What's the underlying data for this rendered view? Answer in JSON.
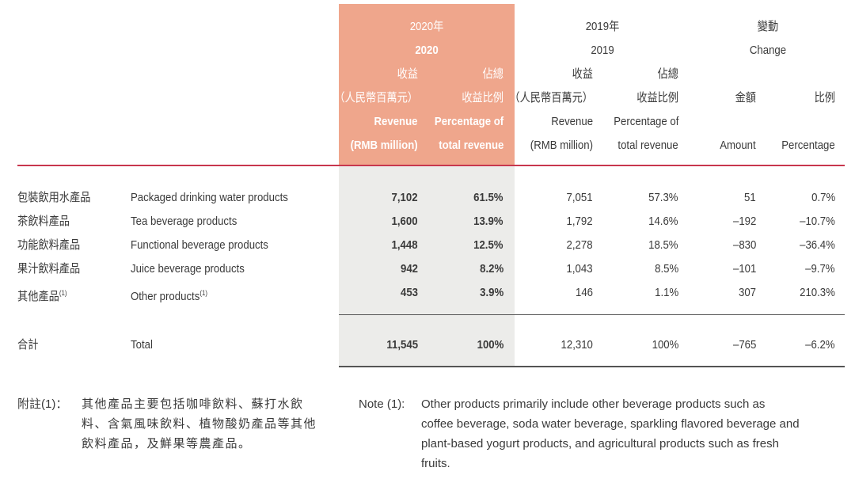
{
  "header": {
    "y2020_zh": "2020年",
    "y2020_en": "2020",
    "y2019_zh": "2019年",
    "y2019_en": "2019",
    "change_zh": "變動",
    "change_en": "Change",
    "rev_zh_1": "收益",
    "rev_zh_2": "（人民幣百萬元）",
    "pct_zh_1": "佔總",
    "pct_zh_2": "收益比例",
    "rev_en_1": "Revenue",
    "rev_en_2": "(RMB million)",
    "pct_en_1": "Percentage of",
    "pct_en_2": "total revenue",
    "amount_zh": "金額",
    "amount_en": "Amount",
    "ratio_zh": "比例",
    "ratio_en": "Percentage"
  },
  "rows": [
    {
      "zh": "包裝飲用水產品",
      "en": "Packaged drinking water products",
      "rev2020": "7,102",
      "pct2020": "61.5%",
      "rev2019": "7,051",
      "pct2019": "57.3%",
      "amount": "51",
      "ratio": "0.7%"
    },
    {
      "zh": "茶飲料產品",
      "en": "Tea beverage products",
      "rev2020": "1,600",
      "pct2020": "13.9%",
      "rev2019": "1,792",
      "pct2019": "14.6%",
      "amount": "–192",
      "ratio": "–10.7%"
    },
    {
      "zh": "功能飲料產品",
      "en": "Functional beverage products",
      "rev2020": "1,448",
      "pct2020": "12.5%",
      "rev2019": "2,278",
      "pct2019": "18.5%",
      "amount": "–830",
      "ratio": "–36.4%"
    },
    {
      "zh": "果汁飲料產品",
      "en": "Juice beverage products",
      "rev2020": "942",
      "pct2020": "8.2%",
      "rev2019": "1,043",
      "pct2019": "8.5%",
      "amount": "–101",
      "ratio": "–9.7%"
    },
    {
      "zh": "其他產品",
      "zh_sup": "(1)",
      "en": "Other products",
      "en_sup": "(1)",
      "rev2020": "453",
      "pct2020": "3.9%",
      "rev2019": "146",
      "pct2019": "1.1%",
      "amount": "307",
      "ratio": "210.3%"
    }
  ],
  "total": {
    "zh": "合計",
    "en": "Total",
    "rev2020": "11,545",
    "pct2020": "100%",
    "rev2019": "12,310",
    "pct2019": "100%",
    "amount": "–765",
    "ratio": "–6.2%"
  },
  "note": {
    "zh_label": "附註(1)：",
    "zh_lines": [
      "其他產品主要包括咖啡飲料、蘇打水飲",
      "料、含氣風味飲料、植物酸奶產品等其他",
      "飲料產品，及鮮果等農產品。"
    ],
    "en_label": "Note (1):",
    "en_lines": [
      "Other products primarily include other beverage products such as",
      "coffee beverage, soda water beverage, sparkling flavored beverage and",
      "plant-based yogurt products, and agricultural products such as fresh",
      "fruits."
    ]
  }
}
